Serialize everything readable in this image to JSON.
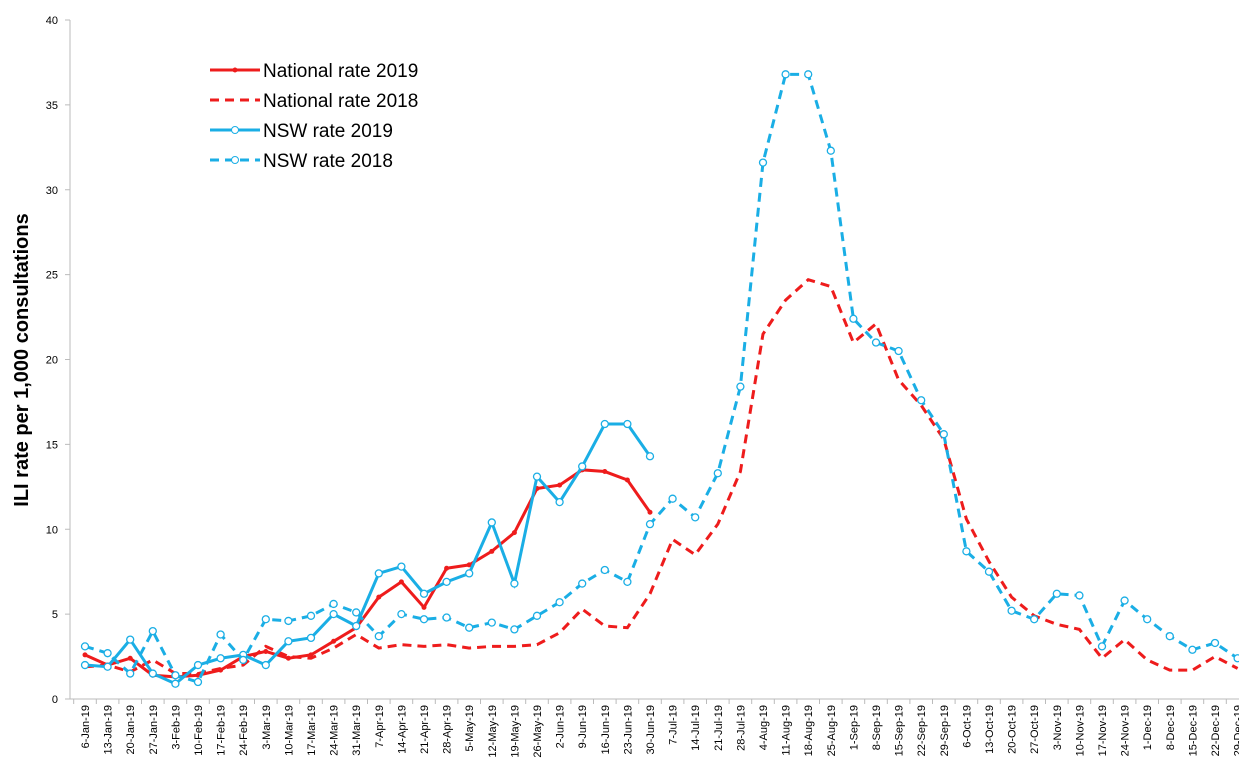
{
  "chart_data": {
    "type": "line",
    "y_label": "ILI rate per 1,000 consultations",
    "categories": [
      "6-Jan-19",
      "13-Jan-19",
      "20-Jan-19",
      "27-Jan-19",
      "3-Feb-19",
      "10-Feb-19",
      "17-Feb-19",
      "24-Feb-19",
      "3-Mar-19",
      "10-Mar-19",
      "17-Mar-19",
      "24-Mar-19",
      "31-Mar-19",
      "7-Apr-19",
      "14-Apr-19",
      "21-Apr-19",
      "28-Apr-19",
      "5-May-19",
      "12-May-19",
      "19-May-19",
      "26-May-19",
      "2-Jun-19",
      "9-Jun-19",
      "16-Jun-19",
      "23-Jun-19",
      "30-Jun-19",
      "7-Jul-19",
      "14-Jul-19",
      "21-Jul-19",
      "28-Jul-19",
      "4-Aug-19",
      "11-Aug-19",
      "18-Aug-19",
      "25-Aug-19",
      "1-Sep-19",
      "8-Sep-19",
      "15-Sep-19",
      "22-Sep-19",
      "29-Sep-19",
      "6-Oct-19",
      "13-Oct-19",
      "20-Oct-19",
      "27-Oct-19",
      "3-Nov-19",
      "10-Nov-19",
      "17-Nov-19",
      "24-Nov-19",
      "1-Dec-19",
      "8-Dec-19",
      "15-Dec-19",
      "22-Dec-19",
      "29-Dec-19"
    ],
    "series": [
      {
        "name": "National rate 2019",
        "color": "#ee1c1c",
        "dash": false,
        "marker": "dot",
        "values": [
          2.6,
          2.0,
          2.4,
          1.4,
          1.3,
          1.4,
          1.7,
          2.5,
          2.8,
          2.4,
          2.6,
          3.4,
          4.2,
          6.0,
          6.9,
          5.4,
          7.7,
          7.9,
          8.7,
          9.8,
          12.4,
          12.6,
          13.5,
          13.4,
          12.9,
          11.0,
          null,
          null,
          null,
          null,
          null,
          null,
          null,
          null,
          null,
          null,
          null,
          null,
          null,
          null,
          null,
          null,
          null,
          null,
          null,
          null,
          null,
          null,
          null,
          null,
          null,
          null
        ]
      },
      {
        "name": "National rate 2018",
        "color": "#ee1c1c",
        "dash": true,
        "marker": "none",
        "values": [
          1.9,
          2.0,
          1.6,
          2.3,
          1.5,
          1.5,
          1.8,
          2.0,
          3.1,
          2.5,
          2.4,
          3.0,
          3.8,
          3.0,
          3.2,
          3.1,
          3.2,
          3.0,
          3.1,
          3.1,
          3.2,
          3.9,
          5.3,
          4.3,
          4.2,
          6.2,
          9.4,
          8.5,
          10.3,
          13.4,
          21.5,
          23.5,
          24.7,
          24.3,
          21.0,
          22.1,
          18.8,
          17.3,
          15.3,
          10.6,
          8.1,
          6.0,
          4.9,
          4.4,
          4.1,
          2.4,
          3.5,
          2.3,
          1.7,
          1.7,
          2.5,
          1.8
        ]
      },
      {
        "name": "NSW rate 2019",
        "color": "#1aaee5",
        "dash": false,
        "marker": "circle",
        "values": [
          2.0,
          1.9,
          3.5,
          1.5,
          0.9,
          2.0,
          2.4,
          2.6,
          2.0,
          3.4,
          3.6,
          5.0,
          4.3,
          7.4,
          7.8,
          6.2,
          6.9,
          7.4,
          10.4,
          6.8,
          13.1,
          11.6,
          13.7,
          16.2,
          16.2,
          14.3,
          null,
          null,
          null,
          null,
          null,
          null,
          null,
          null,
          null,
          null,
          null,
          null,
          null,
          null,
          null,
          null,
          null,
          null,
          null,
          null,
          null,
          null,
          null,
          null,
          null,
          null
        ]
      },
      {
        "name": "NSW rate 2018",
        "color": "#1aaee5",
        "dash": true,
        "marker": "circle",
        "values": [
          3.1,
          2.7,
          1.5,
          4.0,
          1.4,
          1.0,
          3.8,
          2.3,
          4.7,
          4.6,
          4.9,
          5.6,
          5.1,
          3.7,
          5.0,
          4.7,
          4.8,
          4.2,
          4.5,
          4.1,
          4.9,
          5.7,
          6.8,
          7.6,
          6.9,
          10.3,
          11.8,
          10.7,
          13.3,
          18.4,
          31.6,
          36.8,
          36.8,
          32.3,
          22.4,
          21.0,
          20.5,
          17.6,
          15.6,
          8.7,
          7.5,
          5.2,
          4.7,
          6.2,
          6.1,
          3.1,
          5.8,
          4.7,
          3.7,
          2.9,
          3.3,
          2.4
        ]
      }
    ],
    "ylim": [
      0,
      40
    ],
    "yticks": [
      0,
      5,
      10,
      15,
      20,
      25,
      30,
      35,
      40
    ],
    "grid": false,
    "legend": "top-left"
  }
}
